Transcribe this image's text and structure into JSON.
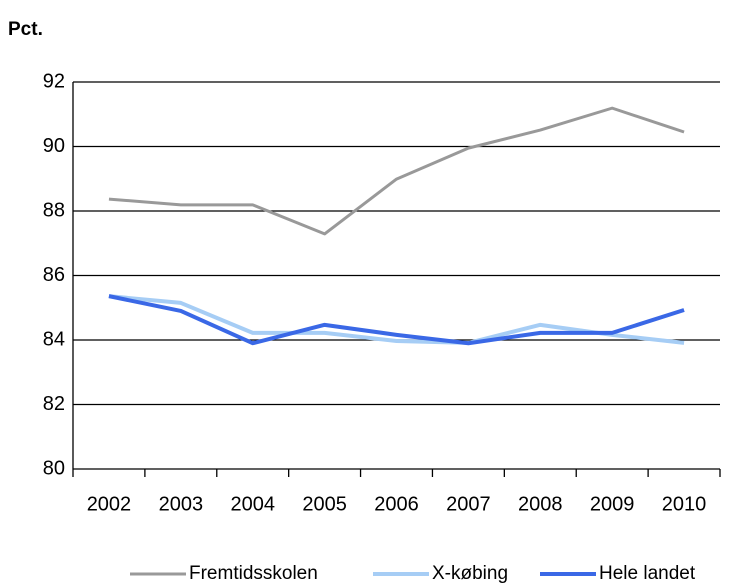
{
  "chart_data": {
    "type": "line",
    "y_label": "Pct.",
    "categories": [
      "2002",
      "2003",
      "2004",
      "2005",
      "2006",
      "2007",
      "2008",
      "2009",
      "2010"
    ],
    "series": [
      {
        "name": "Fremtidsskolen",
        "color": "#999999",
        "values": [
          88.37,
          88.19,
          88.19,
          87.29,
          88.99,
          89.95,
          90.51,
          91.19,
          90.45
        ]
      },
      {
        "name": "X-købing",
        "color": "#a6cdf5",
        "values": [
          85.36,
          85.15,
          84.22,
          84.22,
          83.97,
          83.91,
          84.47,
          84.16,
          83.91
        ]
      },
      {
        "name": "Hele landet",
        "color": "#3a68e6",
        "values": [
          85.36,
          84.9,
          83.9,
          84.47,
          84.16,
          83.9,
          84.22,
          84.22,
          84.93
        ]
      }
    ],
    "ylim": [
      80,
      92
    ],
    "yticks": [
      80,
      82,
      84,
      86,
      88,
      90,
      92
    ],
    "grid": true,
    "legend": "bottom"
  }
}
